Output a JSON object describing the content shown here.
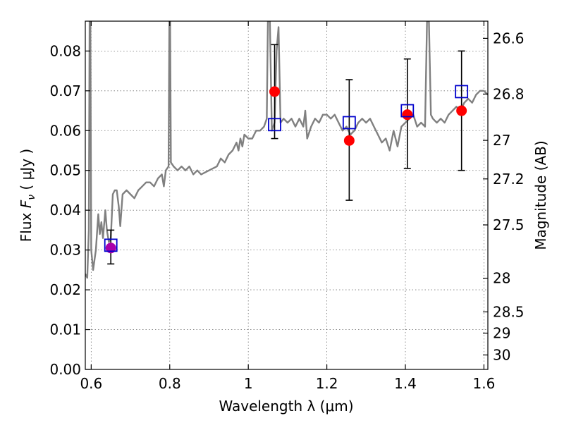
{
  "chart_data": {
    "type": "scatter",
    "xlabel": "Wavelength  λ (μm)",
    "ylabel_left": "Flux  F_ν  ( μJy )",
    "ylabel_right": "Magnitude (AB)",
    "xlim": [
      0.585,
      1.61
    ],
    "ylim": [
      0.0,
      0.0875
    ],
    "x_ticks": [
      0.6,
      0.8,
      1.0,
      1.2,
      1.4,
      1.6
    ],
    "x_tick_labels": [
      "0.6",
      "0.8",
      "1",
      "1.2",
      "1.4",
      "1.6"
    ],
    "y_ticks": [
      0.0,
      0.01,
      0.02,
      0.03,
      0.04,
      0.05,
      0.06,
      0.07,
      0.08
    ],
    "y_tick_labels": [
      "0.00",
      "0.01",
      "0.02",
      "0.03",
      "0.04",
      "0.05",
      "0.06",
      "0.07",
      "0.08"
    ],
    "mag_ticks": [
      26.6,
      26.8,
      27,
      27.2,
      27.5,
      28,
      28.5,
      29,
      30
    ],
    "mag_tick_labels": [
      "26.6",
      "26.8",
      "27",
      "27.2",
      "27.5",
      "28",
      "28.5",
      "29",
      "30"
    ],
    "grid": true,
    "spectrum": {
      "color": "#808080",
      "points": [
        [
          0.585,
          0.024
        ],
        [
          0.59,
          0.023
        ],
        [
          0.594,
          0.035
        ],
        [
          0.596,
          0.0875
        ],
        [
          0.598,
          0.0875
        ],
        [
          0.6,
          0.03
        ],
        [
          0.605,
          0.025
        ],
        [
          0.612,
          0.03
        ],
        [
          0.618,
          0.039
        ],
        [
          0.622,
          0.034
        ],
        [
          0.626,
          0.037
        ],
        [
          0.63,
          0.033
        ],
        [
          0.636,
          0.04
        ],
        [
          0.64,
          0.035
        ],
        [
          0.645,
          0.032
        ],
        [
          0.65,
          0.033
        ],
        [
          0.655,
          0.044
        ],
        [
          0.66,
          0.045
        ],
        [
          0.665,
          0.045
        ],
        [
          0.67,
          0.041
        ],
        [
          0.674,
          0.036
        ],
        [
          0.68,
          0.044
        ],
        [
          0.69,
          0.045
        ],
        [
          0.7,
          0.044
        ],
        [
          0.71,
          0.043
        ],
        [
          0.72,
          0.045
        ],
        [
          0.73,
          0.046
        ],
        [
          0.74,
          0.047
        ],
        [
          0.75,
          0.047
        ],
        [
          0.76,
          0.046
        ],
        [
          0.77,
          0.048
        ],
        [
          0.78,
          0.049
        ],
        [
          0.785,
          0.046
        ],
        [
          0.79,
          0.05
        ],
        [
          0.797,
          0.051
        ],
        [
          0.799,
          0.0875
        ],
        [
          0.801,
          0.0875
        ],
        [
          0.803,
          0.052
        ],
        [
          0.81,
          0.051
        ],
        [
          0.82,
          0.05
        ],
        [
          0.83,
          0.051
        ],
        [
          0.84,
          0.05
        ],
        [
          0.85,
          0.051
        ],
        [
          0.86,
          0.049
        ],
        [
          0.87,
          0.05
        ],
        [
          0.88,
          0.049
        ],
        [
          0.9,
          0.05
        ],
        [
          0.92,
          0.051
        ],
        [
          0.93,
          0.053
        ],
        [
          0.94,
          0.052
        ],
        [
          0.95,
          0.054
        ],
        [
          0.96,
          0.055
        ],
        [
          0.97,
          0.057
        ],
        [
          0.975,
          0.055
        ],
        [
          0.98,
          0.058
        ],
        [
          0.985,
          0.056
        ],
        [
          0.99,
          0.059
        ],
        [
          1.0,
          0.058
        ],
        [
          1.01,
          0.058
        ],
        [
          1.02,
          0.06
        ],
        [
          1.03,
          0.06
        ],
        [
          1.04,
          0.061
        ],
        [
          1.047,
          0.063
        ],
        [
          1.05,
          0.0875
        ],
        [
          1.055,
          0.0875
        ],
        [
          1.06,
          0.06
        ],
        [
          1.067,
          0.062
        ],
        [
          1.072,
          0.08
        ],
        [
          1.077,
          0.086
        ],
        [
          1.082,
          0.062
        ],
        [
          1.09,
          0.063
        ],
        [
          1.1,
          0.062
        ],
        [
          1.11,
          0.063
        ],
        [
          1.12,
          0.061
        ],
        [
          1.13,
          0.063
        ],
        [
          1.14,
          0.061
        ],
        [
          1.145,
          0.065
        ],
        [
          1.15,
          0.058
        ],
        [
          1.16,
          0.061
        ],
        [
          1.17,
          0.063
        ],
        [
          1.18,
          0.062
        ],
        [
          1.19,
          0.064
        ],
        [
          1.2,
          0.064
        ],
        [
          1.21,
          0.063
        ],
        [
          1.22,
          0.064
        ],
        [
          1.23,
          0.062
        ],
        [
          1.24,
          0.06
        ],
        [
          1.25,
          0.061
        ],
        [
          1.26,
          0.059
        ],
        [
          1.27,
          0.06
        ],
        [
          1.28,
          0.062
        ],
        [
          1.29,
          0.063
        ],
        [
          1.3,
          0.062
        ],
        [
          1.31,
          0.063
        ],
        [
          1.32,
          0.061
        ],
        [
          1.33,
          0.059
        ],
        [
          1.34,
          0.057
        ],
        [
          1.35,
          0.058
        ],
        [
          1.36,
          0.055
        ],
        [
          1.37,
          0.06
        ],
        [
          1.38,
          0.056
        ],
        [
          1.39,
          0.061
        ],
        [
          1.4,
          0.062
        ],
        [
          1.41,
          0.063
        ],
        [
          1.42,
          0.064
        ],
        [
          1.43,
          0.061
        ],
        [
          1.44,
          0.062
        ],
        [
          1.45,
          0.061
        ],
        [
          1.455,
          0.0875
        ],
        [
          1.46,
          0.0875
        ],
        [
          1.465,
          0.064
        ],
        [
          1.47,
          0.063
        ],
        [
          1.48,
          0.062
        ],
        [
          1.49,
          0.063
        ],
        [
          1.5,
          0.062
        ],
        [
          1.51,
          0.064
        ],
        [
          1.52,
          0.065
        ],
        [
          1.53,
          0.066
        ],
        [
          1.54,
          0.065
        ],
        [
          1.55,
          0.067
        ],
        [
          1.56,
          0.068
        ],
        [
          1.57,
          0.067
        ],
        [
          1.58,
          0.069
        ],
        [
          1.59,
          0.07
        ],
        [
          1.6,
          0.07
        ],
        [
          1.61,
          0.069
        ]
      ]
    },
    "observed": {
      "color": "#ff0000",
      "points": [
        {
          "x": 1.067,
          "y": 0.0698,
          "yerr_low": 0.0118,
          "yerr_high": 0.0118
        },
        {
          "x": 1.257,
          "y": 0.0575,
          "yerr_low": 0.015,
          "yerr_high": 0.0153
        },
        {
          "x": 1.405,
          "y": 0.064,
          "yerr_low": 0.0135,
          "yerr_high": 0.014
        },
        {
          "x": 1.543,
          "y": 0.065,
          "yerr_low": 0.015,
          "yerr_high": 0.015
        }
      ]
    },
    "observed_purple": {
      "color": "#aa00aa",
      "points": [
        {
          "x": 0.65,
          "y": 0.0305,
          "yerr_low": 0.004,
          "yerr_high": 0.0045
        }
      ]
    },
    "model": {
      "color": "#0000cc",
      "points": [
        {
          "x": 0.65,
          "y": 0.0312
        },
        {
          "x": 1.067,
          "y": 0.0615
        },
        {
          "x": 1.257,
          "y": 0.062
        },
        {
          "x": 1.405,
          "y": 0.065
        },
        {
          "x": 1.543,
          "y": 0.0698
        }
      ]
    }
  }
}
